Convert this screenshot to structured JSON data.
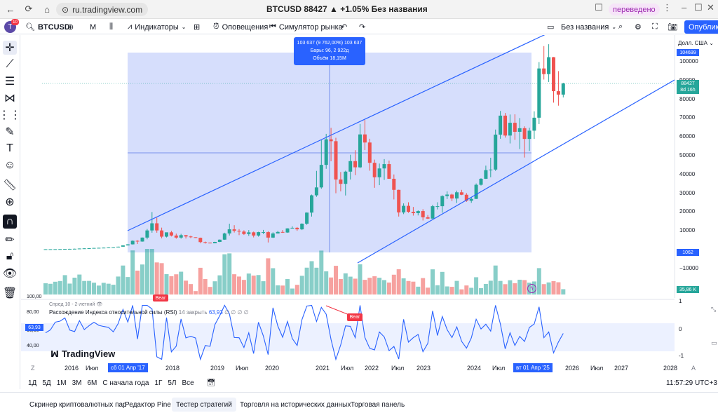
{
  "browser": {
    "url": "ru.tradingview.com",
    "title": "BTCUSD 88427 ▲ +1.05% Без названия",
    "translated_badge": "переведено"
  },
  "toolbar": {
    "avatar_letter": "T",
    "avatar_badge": "10",
    "symbol": "BTCUSD",
    "interval": "М",
    "indicators_label": "Индикаторы",
    "alerts_label": "Оповещения",
    "replay_label": "Симулятор рынка",
    "layout_name": "Без названия",
    "publish_label": "Опубликова"
  },
  "price_scale": {
    "currency_label": "Долл. США",
    "ticks": [
      "100000",
      "90000",
      "80000",
      "70000",
      "60000",
      "50000",
      "40000",
      "30000",
      "20000",
      "10000",
      "−10000"
    ],
    "badge_top": "104699",
    "badge_current": "88427",
    "badge_countdown": "8d 16h",
    "badge_bottom": "1062",
    "badge_volume": "35,86 K"
  },
  "measure_tooltip": {
    "line1": "103 637 (9 762,00%) 103 637",
    "line2": "Бары: 96, 2 922д",
    "line3": "Объём 18,15M"
  },
  "rsi_pane": {
    "title": "Расхождение Индекса относительной силы (RSI)",
    "params": "14 закрыть",
    "value": "63,93",
    "dots": "∅ ∅ ∅ ∅",
    "spread_label": "Спред 10 - 2-летний",
    "left_labels": [
      "100,00",
      "80,00",
      "60,00",
      "40,00"
    ],
    "current_badge": "63,93",
    "right_labels": [
      "1",
      "0",
      "-1"
    ],
    "bear_label": "Bear"
  },
  "logo": "TradingView",
  "time_axis": {
    "labels": [
      "2016",
      "Июл",
      "2018",
      "2019",
      "Июл",
      "2020",
      "2021",
      "Июл",
      "2022",
      "Июл",
      "2023",
      "2024",
      "Июл",
      "2026",
      "Июл",
      "2027",
      "2028"
    ],
    "start_badge": "сб 01 Апр '17",
    "end_badge": "вт 01 Апр '25",
    "left_icon": "Z",
    "right_icon": "A"
  },
  "ranges": [
    "1Д",
    "5Д",
    "1М",
    "3М",
    "6М",
    "С начала года",
    "1Г",
    "5Л",
    "Все"
  ],
  "clock": "11:57:29 UTC+3",
  "bottom_tabs": [
    "Скринер криптовалютных пар",
    "Редактор Pine",
    "Тестер стратегий",
    "Торговля на исторических данных",
    "Торговая панель"
  ],
  "colors": {
    "up": "#26a69a",
    "down": "#ef5350",
    "accent": "#2962ff",
    "measure_fill": "#cfd8fb",
    "rsi_line": "#2962ff"
  },
  "chart_data": {
    "type": "candlestick",
    "symbol": "BTCUSD",
    "interval": "1M",
    "current_price": 88427,
    "change_pct": 1.05,
    "ohlc": [
      [
        200,
        220,
        180,
        210
      ],
      [
        210,
        230,
        190,
        220
      ],
      [
        220,
        260,
        210,
        250
      ],
      [
        250,
        300,
        240,
        290
      ],
      [
        290,
        380,
        280,
        360
      ],
      [
        360,
        420,
        350,
        400
      ],
      [
        400,
        500,
        380,
        450
      ],
      [
        450,
        600,
        440,
        580
      ],
      [
        580,
        700,
        560,
        660
      ],
      [
        660,
        800,
        640,
        760
      ],
      [
        760,
        900,
        740,
        880
      ],
      [
        880,
        1000,
        860,
        960
      ],
      [
        960,
        1100,
        900,
        1040
      ],
      [
        1040,
        1200,
        1000,
        1150
      ],
      [
        1150,
        1300,
        1100,
        1250
      ],
      [
        1250,
        1600,
        1200,
        1550
      ],
      [
        1550,
        2300,
        1500,
        2250
      ],
      [
        2250,
        2900,
        2200,
        2800
      ],
      [
        2800,
        4900,
        2700,
        4700
      ],
      [
        4700,
        5000,
        3000,
        4300
      ],
      [
        4300,
        6500,
        4200,
        6400
      ],
      [
        6400,
        11000,
        5500,
        10200
      ],
      [
        10200,
        20000,
        9000,
        14000
      ],
      [
        14000,
        17000,
        9000,
        10200
      ],
      [
        10200,
        11700,
        6000,
        6900
      ],
      [
        6900,
        9000,
        6500,
        9200
      ],
      [
        9200,
        10000,
        7000,
        7500
      ],
      [
        7500,
        8500,
        5800,
        6400
      ],
      [
        6400,
        8400,
        5800,
        7700
      ],
      [
        7700,
        7800,
        5900,
        7000
      ],
      [
        7000,
        7400,
        6100,
        6600
      ],
      [
        6600,
        6600,
        6200,
        6300
      ],
      [
        6300,
        6400,
        3400,
        4000
      ],
      [
        4000,
        4300,
        3200,
        3700
      ],
      [
        3700,
        3800,
        3300,
        3400
      ],
      [
        3400,
        4200,
        3400,
        4100
      ],
      [
        4100,
        5400,
        4000,
        5300
      ],
      [
        5300,
        9000,
        5200,
        8600
      ],
      [
        8600,
        13800,
        7500,
        10800
      ],
      [
        10800,
        13000,
        9100,
        10000
      ],
      [
        10000,
        10900,
        7700,
        9600
      ],
      [
        9600,
        10300,
        7800,
        8300
      ],
      [
        8300,
        10400,
        7300,
        9200
      ],
      [
        9200,
        9600,
        6500,
        7500
      ],
      [
        7500,
        9500,
        6900,
        9300
      ],
      [
        9300,
        10500,
        8300,
        9300
      ],
      [
        9300,
        9800,
        3800,
        6400
      ],
      [
        6400,
        9200,
        6200,
        8600
      ],
      [
        8600,
        10000,
        8600,
        9400
      ],
      [
        9400,
        10400,
        8900,
        9100
      ],
      [
        9100,
        11400,
        8900,
        11300
      ],
      [
        11300,
        12400,
        11200,
        11600
      ],
      [
        11600,
        12000,
        10000,
        10800
      ],
      [
        10800,
        14000,
        10400,
        13800
      ],
      [
        13800,
        19800,
        13200,
        19700
      ],
      [
        19700,
        29300,
        17600,
        28900
      ],
      [
        28900,
        41900,
        28100,
        33100
      ],
      [
        33100,
        58300,
        32400,
        45100
      ],
      [
        45100,
        61600,
        43000,
        58700
      ],
      [
        58700,
        64800,
        47000,
        57700
      ],
      [
        57700,
        59500,
        30000,
        37300
      ],
      [
        37300,
        41300,
        31000,
        35000
      ],
      [
        35000,
        42000,
        28800,
        41500
      ],
      [
        41500,
        50500,
        37300,
        47100
      ],
      [
        47100,
        52900,
        39600,
        43800
      ],
      [
        43800,
        66900,
        43300,
        61300
      ],
      [
        61300,
        69000,
        53000,
        57000
      ],
      [
        57000,
        59000,
        42000,
        46200
      ],
      [
        46200,
        47900,
        32900,
        38500
      ],
      [
        38500,
        45800,
        34300,
        43200
      ],
      [
        43200,
        48200,
        37100,
        45500
      ],
      [
        45500,
        47400,
        37700,
        37700
      ],
      [
        37700,
        40000,
        26700,
        31800
      ],
      [
        31800,
        31900,
        17600,
        19800
      ],
      [
        19800,
        24600,
        18900,
        23300
      ],
      [
        23300,
        25200,
        19600,
        20100
      ],
      [
        20100,
        22700,
        18100,
        19400
      ],
      [
        19400,
        20900,
        18200,
        20500
      ],
      [
        20500,
        21500,
        15500,
        17200
      ],
      [
        17200,
        18400,
        16300,
        16500
      ],
      [
        16500,
        23900,
        16500,
        23100
      ],
      [
        23100,
        25200,
        21400,
        23100
      ],
      [
        23100,
        28900,
        19600,
        28500
      ],
      [
        28500,
        31000,
        26900,
        29300
      ],
      [
        29300,
        29800,
        25800,
        27200
      ],
      [
        27200,
        31400,
        24800,
        30500
      ],
      [
        30500,
        31800,
        29000,
        29200
      ],
      [
        29200,
        30100,
        25400,
        26000
      ],
      [
        26000,
        28000,
        24900,
        27000
      ],
      [
        27000,
        35200,
        26900,
        34500
      ],
      [
        34500,
        38000,
        34100,
        37700
      ],
      [
        37700,
        44700,
        37600,
        42300
      ],
      [
        42300,
        48900,
        38500,
        42600
      ],
      [
        42600,
        63900,
        41900,
        61200
      ],
      [
        61200,
        73800,
        59000,
        71300
      ],
      [
        71300,
        72700,
        59600,
        60700
      ],
      [
        60700,
        71900,
        56500,
        67500
      ],
      [
        67500,
        72000,
        58400,
        62700
      ],
      [
        62700,
        70000,
        53500,
        64600
      ],
      [
        64600,
        65600,
        49000,
        58900
      ],
      [
        58900,
        64900,
        52500,
        63300
      ],
      [
        63300,
        73600,
        58900,
        70200
      ],
      [
        70200,
        99800,
        66800,
        96400
      ],
      [
        96400,
        108300,
        90500,
        93400
      ],
      [
        93400,
        109300,
        89200,
        102400
      ],
      [
        102400,
        102500,
        78200,
        84300
      ],
      [
        84300,
        95000,
        76600,
        82500
      ],
      [
        82500,
        88800,
        81000,
        88427
      ]
    ]
  }
}
